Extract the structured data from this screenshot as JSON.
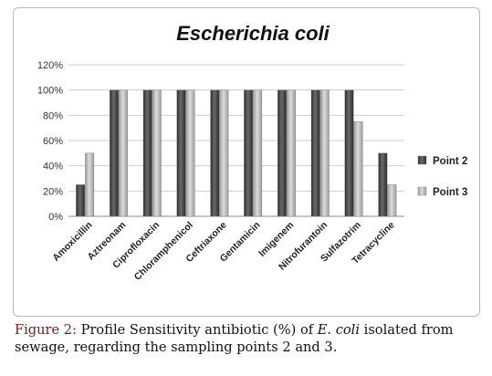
{
  "chart_data": {
    "type": "bar",
    "title": "Escherichia coli",
    "categories": [
      "Amoxicillin",
      "Aztreonam",
      "Ciprofloxacin",
      "Chloramphenicol",
      "Ceftriaxone",
      "Gentamicin",
      "Imigenem",
      "Nitrofurantoin",
      "Sulfazotrim",
      "Tetracycline"
    ],
    "series": [
      {
        "name": "Point 2",
        "values": [
          25,
          100,
          100,
          100,
          100,
          100,
          100,
          100,
          100,
          50
        ],
        "color": "#4a4a4a"
      },
      {
        "name": "Point 3",
        "values": [
          50,
          100,
          100,
          100,
          100,
          100,
          100,
          100,
          75,
          25
        ],
        "color": "#b5b5b5"
      }
    ],
    "y_ticks": [
      "0%",
      "20%",
      "40%",
      "60%",
      "80%",
      "100%",
      "120%"
    ],
    "ylim": [
      0,
      120
    ],
    "grid": true,
    "legend_position": "right"
  },
  "caption": {
    "label": "Figure 2:",
    "text_part1": " Profile Sensitivity antibiotic (%) of ",
    "emph": "E. coli",
    "text_part2": " isolated from sewage, regarding the sampling points 2 and 3."
  }
}
